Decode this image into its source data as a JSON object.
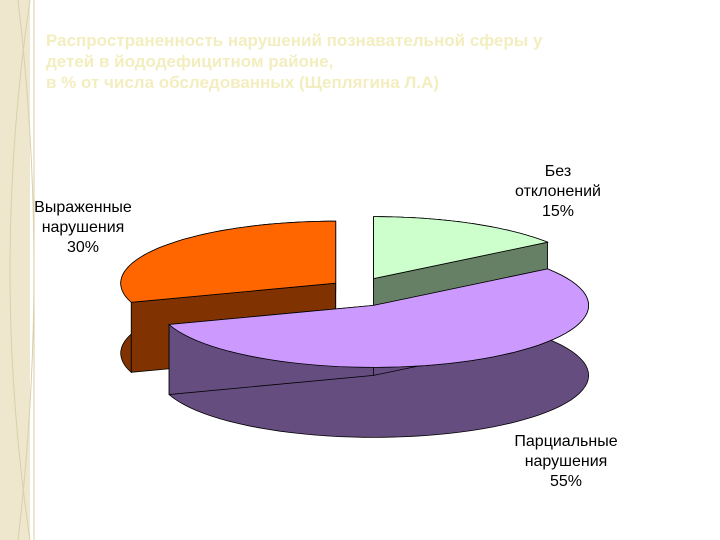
{
  "chart_data": {
    "type": "pie3d",
    "title": "Распространенность нарушений познавательной сферы у\nдетей в йододефицитном районе,\nв % от числа обследованных (Щеплягина Л.А)",
    "categories": [
      "Без\nотклонений",
      "Парциальные\nнарушения",
      "Выраженные\nнарушения"
    ],
    "values": [
      15,
      55,
      30
    ],
    "value_labels": [
      "15%",
      "55%",
      "30%"
    ],
    "colors": [
      "#ccffcc",
      "#cc99ff",
      "#ff6600"
    ]
  }
}
